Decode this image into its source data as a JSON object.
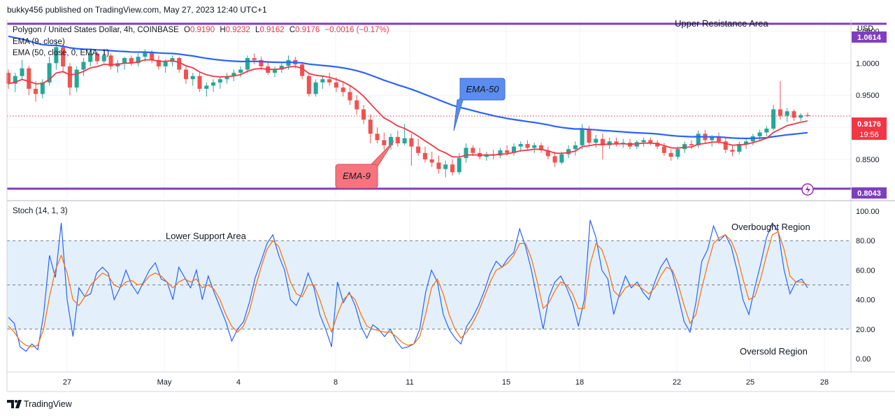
{
  "header": {
    "published_line": "bukky456 published on TradingView.com, May 27, 2023 12:40 UTC+1"
  },
  "legend": {
    "symbol": "Polygon / United States Dollar, 4h, COINBASE",
    "ohlc_open_label": "O",
    "ohlc_open": "0.9190",
    "ohlc_high_label": "H",
    "ohlc_high": "0.9232",
    "ohlc_low_label": "L",
    "ohlc_low": "0.9162",
    "ohlc_close_label": "C",
    "ohlc_close": "0.9176",
    "change": "−0.0016 (−0.17%)",
    "ema9": "EMA (9, close)",
    "ema50": "EMA (50, close, 0, EMA, 1)",
    "stoch": "Stoch (14, 1, 3)"
  },
  "annotations": {
    "upper_resistance": "Upper Resistance Area",
    "lower_support": "Lower Support Area",
    "overbought": "Overbought Region",
    "oversold": "Oversold Region",
    "ema50_callout": "EMA-50",
    "ema9_callout": "EMA-9"
  },
  "price_axis": {
    "currency": "USD",
    "ticks": [
      "1.0500",
      "1.0000",
      "0.9500",
      "0.9000",
      "0.8500"
    ],
    "current_price": "0.9176",
    "countdown": "19:56",
    "resistance_price": "1.0614",
    "support_price": "0.8043"
  },
  "stoch_axis": {
    "ticks": [
      "100.00",
      "80.00",
      "60.00",
      "40.00",
      "20.00",
      "0.00"
    ]
  },
  "time_axis": {
    "labels": [
      "27",
      "May",
      "4",
      "8",
      "11",
      "15",
      "18",
      "22",
      "25",
      "28"
    ]
  },
  "footer": {
    "brand": "TradingView"
  },
  "colors": {
    "bull": "#26a69a",
    "bear": "#ef5350",
    "ema9": "#f23645",
    "ema50": "#2962ff",
    "level": "#7e3fbf",
    "stoch_k": "#2962ff",
    "stoch_d": "#ff6d00",
    "band": "#e3f0fb",
    "current_price": "#f23645",
    "ema9_callout_bg": "#f7737d",
    "ema50_callout_bg": "#5b8def"
  },
  "chart_data": [
    {
      "type": "candlestick",
      "title": "Polygon / United States Dollar, 4h, COINBASE",
      "ylabel": "USD",
      "ylim": [
        0.79,
        1.068
      ],
      "x_labels": [
        "27",
        "May",
        "4",
        "8",
        "11",
        "15",
        "18",
        "22",
        "25",
        "28"
      ],
      "levels": [
        {
          "name": "Upper Resistance Area",
          "value": 1.0614
        },
        {
          "name": "Lower Support Area",
          "value": 0.8043
        }
      ],
      "ohlc_points": [
        [
          0.985,
          0.99,
          0.96,
          0.968
        ],
        [
          0.968,
          0.985,
          0.955,
          0.98
        ],
        [
          0.98,
          1.005,
          0.975,
          0.992
        ],
        [
          0.992,
          0.996,
          0.95,
          0.96
        ],
        [
          0.96,
          0.972,
          0.94,
          0.952
        ],
        [
          0.952,
          0.975,
          0.945,
          0.97
        ],
        [
          0.97,
          1.01,
          0.965,
          1.0
        ],
        [
          1.0,
          1.035,
          0.99,
          1.025
        ],
        [
          1.025,
          1.03,
          0.985,
          0.995
        ],
        [
          0.995,
          1.0,
          0.95,
          0.962
        ],
        [
          0.962,
          0.995,
          0.955,
          0.99
        ],
        [
          0.99,
          1.008,
          0.98,
          1.002
        ],
        [
          1.002,
          1.02,
          0.995,
          1.015
        ],
        [
          1.015,
          1.018,
          0.998,
          1.003
        ],
        [
          1.003,
          1.02,
          1.0,
          1.012
        ],
        [
          1.012,
          1.015,
          0.99,
          0.995
        ],
        [
          0.995,
          1.005,
          0.985,
          1.0
        ],
        [
          1.0,
          1.01,
          0.99,
          1.008
        ],
        [
          1.008,
          1.012,
          0.996,
          1.0
        ],
        [
          1.0,
          1.015,
          0.995,
          1.01
        ],
        [
          1.01,
          1.022,
          1.002,
          1.018
        ],
        [
          1.018,
          1.02,
          1.0,
          1.005
        ],
        [
          1.005,
          1.012,
          0.99,
          0.995
        ],
        [
          0.995,
          1.006,
          0.985,
          1.002
        ],
        [
          1.002,
          1.012,
          0.995,
          1.008
        ],
        [
          1.008,
          1.01,
          0.985,
          0.99
        ],
        [
          0.99,
          0.995,
          0.968,
          0.975
        ],
        [
          0.975,
          0.985,
          0.965,
          0.98
        ],
        [
          0.98,
          0.985,
          0.955,
          0.96
        ],
        [
          0.96,
          0.97,
          0.948,
          0.965
        ],
        [
          0.965,
          0.975,
          0.955,
          0.97
        ],
        [
          0.97,
          0.978,
          0.96,
          0.975
        ],
        [
          0.975,
          0.985,
          0.968,
          0.98
        ],
        [
          0.98,
          0.99,
          0.972,
          0.985
        ],
        [
          0.985,
          0.995,
          0.978,
          0.99
        ],
        [
          0.99,
          1.012,
          0.985,
          1.008
        ],
        [
          1.008,
          1.015,
          0.998,
          1.005
        ],
        [
          1.005,
          1.01,
          0.99,
          0.995
        ],
        [
          0.995,
          1.002,
          0.982,
          0.985
        ],
        [
          0.985,
          0.995,
          0.978,
          0.99
        ],
        [
          0.99,
          1.0,
          0.985,
          0.996
        ],
        [
          0.996,
          1.012,
          0.99,
          1.005
        ],
        [
          1.005,
          1.01,
          0.992,
          0.998
        ],
        [
          0.998,
          1.002,
          0.975,
          0.98
        ],
        [
          0.98,
          0.985,
          0.948,
          0.952
        ],
        [
          0.952,
          0.975,
          0.948,
          0.97
        ],
        [
          0.97,
          0.98,
          0.96,
          0.975
        ],
        [
          0.975,
          0.985,
          0.965,
          0.97
        ],
        [
          0.97,
          0.978,
          0.955,
          0.962
        ],
        [
          0.962,
          0.972,
          0.948,
          0.955
        ],
        [
          0.955,
          0.965,
          0.935,
          0.942
        ],
        [
          0.942,
          0.95,
          0.92,
          0.928
        ],
        [
          0.928,
          0.935,
          0.905,
          0.912
        ],
        [
          0.912,
          0.92,
          0.875,
          0.89
        ],
        [
          0.89,
          0.9,
          0.875,
          0.88
        ],
        [
          0.88,
          0.892,
          0.865,
          0.872
        ],
        [
          0.872,
          0.89,
          0.865,
          0.885
        ],
        [
          0.885,
          0.895,
          0.87,
          0.875
        ],
        [
          0.875,
          0.905,
          0.872,
          0.883
        ],
        [
          0.883,
          0.89,
          0.84,
          0.87
        ],
        [
          0.87,
          0.882,
          0.855,
          0.86
        ],
        [
          0.86,
          0.87,
          0.845,
          0.85
        ],
        [
          0.85,
          0.862,
          0.838,
          0.845
        ],
        [
          0.845,
          0.856,
          0.828,
          0.835
        ],
        [
          0.835,
          0.848,
          0.822,
          0.842
        ],
        [
          0.842,
          0.85,
          0.825,
          0.83
        ],
        [
          0.83,
          0.86,
          0.826,
          0.852
        ],
        [
          0.852,
          0.875,
          0.845,
          0.868
        ],
        [
          0.868,
          0.872,
          0.855,
          0.86
        ],
        [
          0.86,
          0.868,
          0.85,
          0.854
        ],
        [
          0.854,
          0.862,
          0.848,
          0.858
        ],
        [
          0.858,
          0.865,
          0.85,
          0.856
        ],
        [
          0.856,
          0.868,
          0.852,
          0.864
        ],
        [
          0.864,
          0.872,
          0.856,
          0.86
        ],
        [
          0.86,
          0.875,
          0.856,
          0.87
        ],
        [
          0.87,
          0.878,
          0.862,
          0.874
        ],
        [
          0.874,
          0.88,
          0.865,
          0.868
        ],
        [
          0.868,
          0.876,
          0.86,
          0.872
        ],
        [
          0.872,
          0.876,
          0.86,
          0.864
        ],
        [
          0.864,
          0.87,
          0.85,
          0.855
        ],
        [
          0.855,
          0.862,
          0.838,
          0.845
        ],
        [
          0.845,
          0.862,
          0.842,
          0.858
        ],
        [
          0.858,
          0.872,
          0.852,
          0.866
        ],
        [
          0.866,
          0.878,
          0.856,
          0.872
        ],
        [
          0.872,
          0.905,
          0.866,
          0.898
        ],
        [
          0.898,
          0.902,
          0.87,
          0.876
        ],
        [
          0.876,
          0.888,
          0.868,
          0.882
        ],
        [
          0.882,
          0.89,
          0.85,
          0.872
        ],
        [
          0.872,
          0.884,
          0.866,
          0.878
        ],
        [
          0.878,
          0.884,
          0.87,
          0.874
        ],
        [
          0.874,
          0.882,
          0.868,
          0.876
        ],
        [
          0.876,
          0.882,
          0.866,
          0.87
        ],
        [
          0.87,
          0.88,
          0.866,
          0.877
        ],
        [
          0.877,
          0.884,
          0.87,
          0.88
        ],
        [
          0.88,
          0.884,
          0.872,
          0.876
        ],
        [
          0.876,
          0.88,
          0.866,
          0.87
        ],
        [
          0.87,
          0.876,
          0.855,
          0.86
        ],
        [
          0.86,
          0.866,
          0.848,
          0.854
        ],
        [
          0.854,
          0.87,
          0.85,
          0.866
        ],
        [
          0.866,
          0.878,
          0.86,
          0.874
        ],
        [
          0.874,
          0.88,
          0.866,
          0.872
        ],
        [
          0.872,
          0.895,
          0.868,
          0.89
        ],
        [
          0.89,
          0.896,
          0.876,
          0.88
        ],
        [
          0.88,
          0.888,
          0.87,
          0.885
        ],
        [
          0.885,
          0.892,
          0.874,
          0.878
        ],
        [
          0.878,
          0.884,
          0.86,
          0.865
        ],
        [
          0.865,
          0.872,
          0.855,
          0.862
        ],
        [
          0.862,
          0.878,
          0.858,
          0.874
        ],
        [
          0.874,
          0.882,
          0.866,
          0.878
        ],
        [
          0.878,
          0.89,
          0.872,
          0.886
        ],
        [
          0.886,
          0.896,
          0.88,
          0.892
        ],
        [
          0.892,
          0.902,
          0.886,
          0.898
        ],
        [
          0.898,
          0.935,
          0.895,
          0.928
        ],
        [
          0.928,
          0.972,
          0.912,
          0.918
        ],
        [
          0.918,
          0.93,
          0.908,
          0.925
        ],
        [
          0.925,
          0.928,
          0.91,
          0.915
        ],
        [
          0.915,
          0.922,
          0.91,
          0.919
        ],
        [
          0.919,
          0.9232,
          0.9162,
          0.9176
        ]
      ],
      "ema_series": [
        {
          "name": "EMA (9, close)",
          "color": "#f23645"
        },
        {
          "name": "EMA (50, close, 0, EMA, 1)",
          "color": "#2962ff"
        }
      ]
    },
    {
      "type": "line",
      "title": "Stoch (14, 1, 3)",
      "ylim": [
        0,
        100
      ],
      "bands": [
        20,
        50,
        80
      ],
      "series": [
        {
          "values": [
            28,
            24,
            8,
            5,
            10,
            6,
            30,
            70,
            55,
            92,
            40,
            15,
            48,
            42,
            44,
            58,
            62,
            58,
            40,
            48,
            60,
            50,
            44,
            52,
            60,
            65,
            54,
            52,
            40,
            62,
            55,
            48,
            60,
            40,
            56,
            45,
            35,
            25,
            12,
            20,
            25,
            38,
            55,
            66,
            78,
            84,
            70,
            60,
            40,
            36,
            45,
            58,
            48,
            30,
            20,
            8,
            52,
            38,
            45,
            36,
            22,
            14,
            23,
            20,
            15,
            20,
            12,
            7,
            8,
            10,
            20,
            45,
            60,
            52,
            30,
            20,
            14,
            10,
            22,
            28,
            36,
            46,
            58,
            66,
            62,
            68,
            72,
            88,
            76,
            60,
            40,
            20,
            42,
            52,
            56,
            48,
            38,
            22,
            40,
            94,
            82,
            60,
            54,
            30,
            44,
            56,
            48,
            52,
            45,
            40,
            52,
            62,
            68,
            58,
            42,
            25,
            18,
            38,
            66,
            74,
            90,
            80,
            84,
            76,
            60,
            40,
            30,
            48,
            64,
            82,
            92,
            86,
            60,
            44,
            52,
            54,
            48
          ]
        },
        {
          "values": [
            22,
            18,
            12,
            9,
            8,
            9,
            20,
            42,
            60,
            70,
            58,
            40,
            36,
            42,
            50,
            54,
            58,
            56,
            50,
            48,
            52,
            53,
            50,
            51,
            56,
            58,
            56,
            52,
            48,
            52,
            54,
            52,
            54,
            48,
            50,
            47,
            40,
            30,
            22,
            18,
            22,
            32,
            48,
            62,
            74,
            80,
            76,
            65,
            52,
            44,
            42,
            50,
            50,
            40,
            28,
            18,
            30,
            40,
            44,
            40,
            30,
            22,
            20,
            19,
            18,
            18,
            15,
            11,
            9,
            10,
            15,
            30,
            48,
            54,
            44,
            30,
            20,
            14,
            18,
            24,
            32,
            42,
            52,
            60,
            62,
            65,
            70,
            78,
            78,
            68,
            52,
            34,
            38,
            46,
            52,
            50,
            44,
            34,
            34,
            64,
            78,
            74,
            62,
            46,
            42,
            48,
            50,
            50,
            47,
            44,
            48,
            56,
            62,
            60,
            50,
            36,
            24,
            30,
            48,
            64,
            78,
            82,
            84,
            80,
            70,
            54,
            40,
            42,
            54,
            70,
            84,
            86,
            74,
            56,
            52,
            52,
            50
          ]
        }
      ]
    }
  ]
}
